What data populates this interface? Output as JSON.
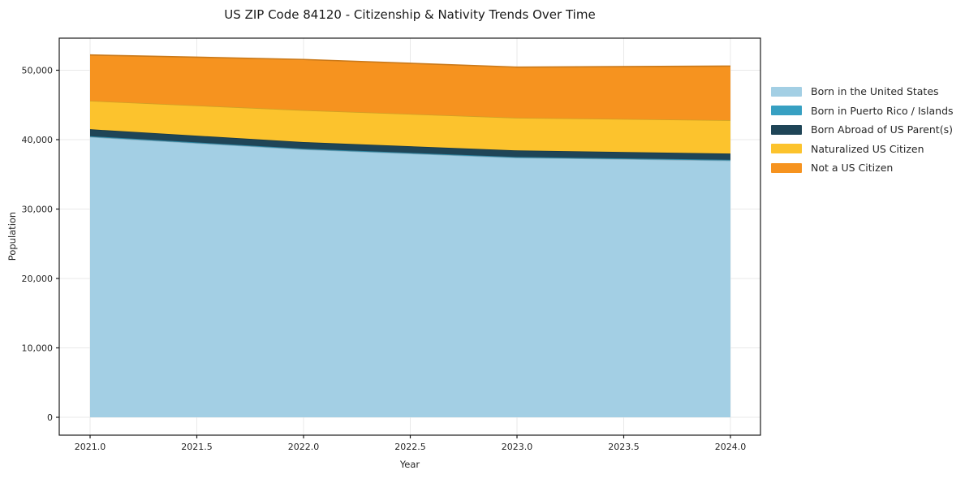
{
  "chart_data": {
    "type": "area",
    "stacked": true,
    "title": "US ZIP Code 84120 - Citizenship & Nativity Trends Over Time",
    "xlabel": "Year",
    "ylabel": "Population",
    "x": [
      2021,
      2022,
      2023,
      2024
    ],
    "series": [
      {
        "name": "Born in the United States",
        "color": "#a3cfe4",
        "values": [
          40400,
          38600,
          37400,
          37000
        ]
      },
      {
        "name": "Born in Puerto Rico / Islands",
        "color": "#37a0c2",
        "values": [
          100,
          100,
          100,
          100
        ]
      },
      {
        "name": "Born Abroad of US Parent(s)",
        "color": "#1f4557",
        "values": [
          1000,
          950,
          950,
          900
        ]
      },
      {
        "name": "Naturalized US Citizen",
        "color": "#fcc32d",
        "values": [
          4100,
          4600,
          4700,
          4800
        ]
      },
      {
        "name": "Not a US Citizen",
        "color": "#f6931f",
        "values": [
          6600,
          7300,
          7300,
          7800
        ]
      }
    ],
    "stacked_totals": [
      52200,
      51550,
      50450,
      50600
    ],
    "xlim": [
      2020.8555,
      2024.1407
    ],
    "ylim": [
      -2573,
      54620
    ],
    "x_ticks": [
      {
        "value": 2021.0,
        "label": "2021.0"
      },
      {
        "value": 2021.5,
        "label": "2021.5"
      },
      {
        "value": 2022.0,
        "label": "2022.0"
      },
      {
        "value": 2022.5,
        "label": "2022.5"
      },
      {
        "value": 2023.0,
        "label": "2023.0"
      },
      {
        "value": 2023.5,
        "label": "2023.5"
      },
      {
        "value": 2024.0,
        "label": "2024.0"
      }
    ],
    "y_ticks": [
      {
        "value": 0,
        "label": "0"
      },
      {
        "value": 10000,
        "label": "10,000"
      },
      {
        "value": 20000,
        "label": "20,000"
      },
      {
        "value": 30000,
        "label": "30,000"
      },
      {
        "value": 40000,
        "label": "40,000"
      },
      {
        "value": 50000,
        "label": "50,000"
      }
    ],
    "grid": true,
    "legend_position": "right",
    "style": {
      "axis_color": "#1a1a1a",
      "grid_color": "#e9e9e9",
      "tick_text_color": "#262626",
      "background": "#ffffff"
    }
  }
}
